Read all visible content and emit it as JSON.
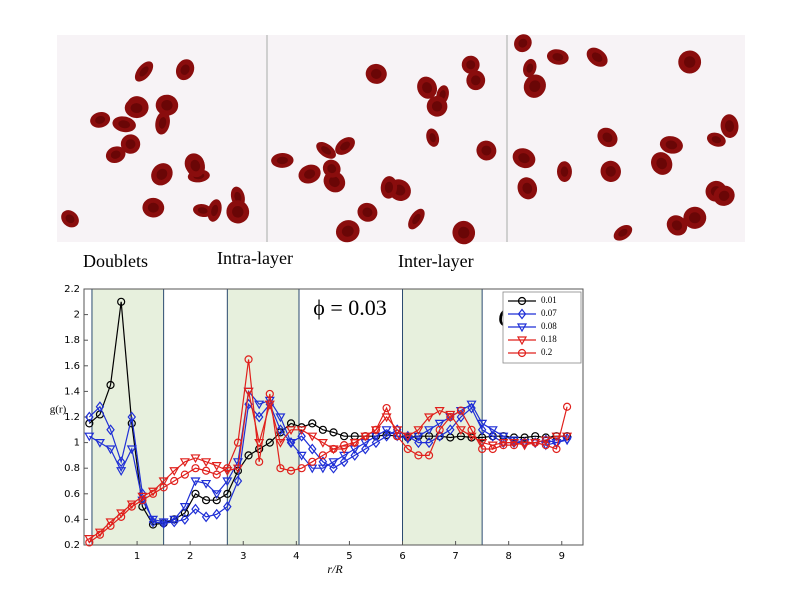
{
  "chart_data": {
    "type": "line",
    "group_labels": [
      "Doublets",
      "Intra-layer",
      "Inter-layer"
    ],
    "annotation": "ϕ = 0.03",
    "annotation_italic": "Ca",
    "xlabel": "r/R",
    "ylabel": "g(r)",
    "xlim": [
      0,
      9.4
    ],
    "ylim": [
      0.2,
      2.2
    ],
    "xticks": [
      1,
      2,
      3,
      4,
      5,
      6,
      7,
      8,
      9
    ],
    "yticks": [
      0.2,
      0.4,
      0.6,
      0.8,
      1,
      1.2,
      1.4,
      1.6,
      1.8,
      2,
      2.2
    ],
    "bands": [
      [
        0.15,
        1.5
      ],
      [
        2.7,
        4.05
      ],
      [
        6,
        7.5
      ]
    ],
    "band_color": "#e7f0dd",
    "legend": "upper right",
    "x": [
      0.1,
      0.3,
      0.5,
      0.7,
      0.9,
      1.1,
      1.3,
      1.5,
      1.7,
      1.9,
      2.1,
      2.3,
      2.5,
      2.7,
      2.9,
      3.1,
      3.3,
      3.5,
      3.7,
      3.9,
      4.1,
      4.3,
      4.5,
      4.7,
      4.9,
      5.1,
      5.3,
      5.5,
      5.7,
      5.9,
      6.1,
      6.3,
      6.5,
      6.7,
      6.9,
      7.1,
      7.3,
      7.5,
      7.7,
      7.9,
      8.1,
      8.3,
      8.5,
      8.7,
      8.9,
      9.1
    ],
    "series": [
      {
        "name": "0.01",
        "color": "#000000",
        "marker": "circle",
        "values": [
          1.15,
          1.22,
          1.45,
          2.1,
          1.15,
          0.5,
          0.36,
          0.37,
          0.4,
          0.45,
          0.6,
          0.55,
          0.55,
          0.6,
          0.78,
          0.9,
          0.95,
          1.0,
          1.08,
          1.15,
          1.12,
          1.15,
          1.1,
          1.08,
          1.05,
          1.05,
          1.05,
          1.05,
          1.06,
          1.05,
          1.04,
          1.05,
          1.05,
          1.05,
          1.04,
          1.05,
          1.04,
          1.04,
          1.05,
          1.05,
          1.04,
          1.04,
          1.05,
          1.04,
          1.05,
          1.05
        ]
      },
      {
        "name": "0.07",
        "color": "#1f2fd6",
        "marker": "diamond",
        "values": [
          1.2,
          1.28,
          1.1,
          0.85,
          1.2,
          0.6,
          0.38,
          0.37,
          0.38,
          0.4,
          0.48,
          0.42,
          0.44,
          0.5,
          0.7,
          1.3,
          1.2,
          1.3,
          1.1,
          1.0,
          1.05,
          0.95,
          0.85,
          0.8,
          0.85,
          0.9,
          0.95,
          1.0,
          1.05,
          1.1,
          1.05,
          1.0,
          1.0,
          1.05,
          1.1,
          1.2,
          1.27,
          1.1,
          1.05,
          1.0,
          1.0,
          1.0,
          1.0,
          1.02,
          1.0,
          1.03
        ]
      },
      {
        "name": "0.08",
        "color": "#1f2fd6",
        "marker": "triangle",
        "values": [
          1.05,
          1.0,
          0.95,
          0.78,
          0.95,
          0.55,
          0.4,
          0.38,
          0.4,
          0.5,
          0.7,
          0.68,
          0.6,
          0.7,
          0.85,
          1.4,
          1.3,
          1.33,
          1.2,
          1.0,
          0.9,
          0.8,
          0.8,
          0.85,
          0.9,
          0.95,
          1.0,
          1.05,
          1.1,
          1.05,
          1.03,
          1.05,
          1.1,
          1.15,
          1.2,
          1.25,
          1.3,
          1.15,
          1.1,
          1.05,
          1.02,
          1.0,
          1.0,
          0.98,
          1.0,
          1.02
        ]
      },
      {
        "name": "0.18",
        "color": "#e0201c",
        "marker": "triangle",
        "values": [
          0.25,
          0.3,
          0.38,
          0.45,
          0.52,
          0.58,
          0.62,
          0.7,
          0.78,
          0.85,
          0.88,
          0.85,
          0.82,
          0.78,
          0.8,
          1.4,
          1.0,
          1.3,
          1.0,
          1.1,
          1.1,
          1.05,
          1.0,
          0.95,
          0.95,
          1.0,
          1.05,
          1.1,
          1.2,
          1.1,
          1.05,
          1.1,
          1.2,
          1.25,
          1.22,
          1.1,
          1.05,
          1.0,
          0.98,
          1.0,
          1.0,
          0.98,
          1.0,
          1.02,
          1.05,
          1.05
        ]
      },
      {
        "name": "0.2",
        "color": "#e0201c",
        "marker": "circle",
        "values": [
          0.22,
          0.28,
          0.35,
          0.42,
          0.5,
          0.55,
          0.6,
          0.65,
          0.7,
          0.75,
          0.8,
          0.78,
          0.75,
          0.8,
          1.0,
          1.65,
          0.85,
          1.38,
          0.8,
          0.78,
          0.8,
          0.85,
          0.9,
          0.95,
          0.98,
          1.0,
          1.05,
          1.1,
          1.27,
          1.05,
          0.95,
          0.9,
          0.9,
          1.1,
          1.2,
          1.25,
          1.1,
          0.95,
          0.95,
          0.98,
          0.98,
          1.0,
          1.0,
          0.98,
          0.95,
          1.28
        ]
      }
    ]
  }
}
